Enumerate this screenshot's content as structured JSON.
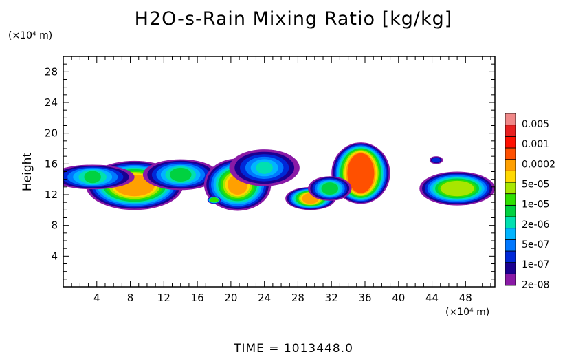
{
  "chart_data": {
    "type": "heatmap",
    "title": "H2O-s-Rain Mixing Ratio [kg/kg]",
    "ylabel": "Height",
    "xlabel": "",
    "x_unit": "(×10⁴ m)",
    "y_unit": "(×10⁴ m)",
    "xlim": [
      0,
      51.5
    ],
    "ylim": [
      0,
      30
    ],
    "x_ticks": [
      "4",
      "8",
      "12",
      "16",
      "20",
      "24",
      "28",
      "32",
      "36",
      "40",
      "44",
      "48"
    ],
    "y_ticks": [
      "4",
      "8",
      "12",
      "16",
      "20",
      "24",
      "28"
    ],
    "colorbar": {
      "labels": [
        "0.005",
        "0.001",
        "0.0002",
        "5e-05",
        "1e-05",
        "2e-06",
        "5e-07",
        "1e-07",
        "2e-08"
      ],
      "colors": [
        "#8a1aa6",
        "#1a0090",
        "#0028d8",
        "#0078ff",
        "#00b4ff",
        "#00e0b0",
        "#00d240",
        "#30e000",
        "#a8e600",
        "#ffd800",
        "#ffa000",
        "#ff5000",
        "#ff1000",
        "#e82020",
        "#f08888"
      ]
    },
    "cells": [
      {
        "name": "cell-1",
        "x": 8.5,
        "y": 13.2,
        "level": 10,
        "core_rx": 2.4,
        "core_ry": 1.4,
        "rx": 5.8,
        "ry": 3.2
      },
      {
        "name": "cell-2",
        "x": 3.5,
        "y": 14.3,
        "level": 6,
        "core_rx": 1.0,
        "core_ry": 0.8,
        "rx": 5.0,
        "ry": 1.6
      },
      {
        "name": "cell-3",
        "x": 14.0,
        "y": 14.6,
        "level": 6,
        "core_rx": 1.3,
        "core_ry": 0.9,
        "rx": 4.5,
        "ry": 2.0
      },
      {
        "name": "cell-4",
        "x": 20.8,
        "y": 13.3,
        "level": 10,
        "core_rx": 1.2,
        "core_ry": 1.3,
        "rx": 4.0,
        "ry": 3.4
      },
      {
        "name": "cell-5",
        "x": 24.0,
        "y": 15.5,
        "level": 5,
        "core_rx": 1.0,
        "core_ry": 0.8,
        "rx": 4.2,
        "ry": 2.4
      },
      {
        "name": "cell-6",
        "x": 29.5,
        "y": 11.5,
        "level": 10,
        "core_rx": 1.0,
        "core_ry": 0.7,
        "rx": 3.0,
        "ry": 1.5
      },
      {
        "name": "cell-7",
        "x": 35.5,
        "y": 14.8,
        "level": 11,
        "core_rx": 1.6,
        "core_ry": 2.6,
        "rx": 3.5,
        "ry": 4.0
      },
      {
        "name": "cell-8",
        "x": 31.8,
        "y": 12.8,
        "level": 6,
        "core_rx": 1.0,
        "core_ry": 0.8,
        "rx": 2.6,
        "ry": 1.6
      },
      {
        "name": "cell-9",
        "x": 47.0,
        "y": 12.8,
        "level": 8,
        "core_rx": 2.0,
        "core_ry": 1.0,
        "rx": 4.5,
        "ry": 2.2
      },
      {
        "name": "cell-10",
        "x": 18.0,
        "y": 11.3,
        "level": 7,
        "core_rx": 0.5,
        "core_ry": 0.3,
        "rx": 0.8,
        "ry": 0.5
      },
      {
        "name": "cell-11",
        "x": 44.5,
        "y": 16.5,
        "level": 2,
        "core_rx": 0.5,
        "core_ry": 0.3,
        "rx": 0.8,
        "ry": 0.5
      }
    ]
  },
  "footer": {
    "time": "TIME = 1013448.0"
  }
}
